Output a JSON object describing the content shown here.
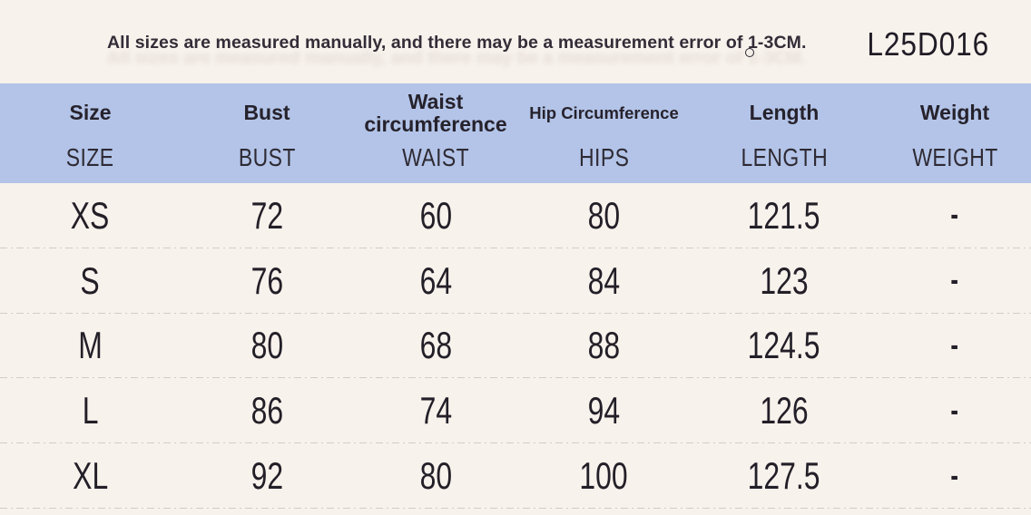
{
  "note": {
    "text": "All sizes are measured manually, and there may be a measurement error of 1-3CM.",
    "circle_mark": ""
  },
  "product_code": "L25D016",
  "colors": {
    "page_bg": "#f8f2ec",
    "header_bg": "#b3c4e8",
    "text_dark": "#2b2630",
    "divider": "#d2ccc7"
  },
  "table": {
    "columns": [
      {
        "label": "Size",
        "sublabel": "SIZE"
      },
      {
        "label": "Bust",
        "sublabel": "BUST"
      },
      {
        "label": "Waist circumference",
        "sublabel": "WAIST"
      },
      {
        "label": "Hip Circumference",
        "sublabel": "HIPS"
      },
      {
        "label": "Length",
        "sublabel": "LENGTH"
      },
      {
        "label": "Weight",
        "sublabel": "WEIGHT"
      }
    ],
    "rows": [
      {
        "size": "XS",
        "bust": "72",
        "waist": "60",
        "hips": "80",
        "length": "121.5",
        "weight": "-"
      },
      {
        "size": "S",
        "bust": "76",
        "waist": "64",
        "hips": "84",
        "length": "123",
        "weight": "-"
      },
      {
        "size": "M",
        "bust": "80",
        "waist": "68",
        "hips": "88",
        "length": "124.5",
        "weight": "-"
      },
      {
        "size": "L",
        "bust": "86",
        "waist": "74",
        "hips": "94",
        "length": "126",
        "weight": "-"
      },
      {
        "size": "XL",
        "bust": "92",
        "waist": "80",
        "hips": "100",
        "length": "127.5",
        "weight": "-"
      }
    ]
  },
  "chart_data": {
    "type": "table",
    "title": "Garment size chart L25D016",
    "note": "All sizes are measured manually, and there may be a measurement error of 1-3CM.",
    "columns": [
      "Size / SIZE",
      "Bust / BUST",
      "Waist circumference / WAIST",
      "Hip Circumference / HIPS",
      "Length / LENGTH",
      "Weight / WEIGHT"
    ],
    "rows": [
      [
        "XS",
        72,
        60,
        80,
        121.5,
        null
      ],
      [
        "S",
        76,
        64,
        84,
        123,
        null
      ],
      [
        "M",
        80,
        68,
        88,
        124.5,
        null
      ],
      [
        "L",
        86,
        74,
        94,
        126,
        null
      ],
      [
        "XL",
        92,
        80,
        100,
        127.5,
        null
      ]
    ],
    "units": "CM",
    "missing_value_marker": "-"
  }
}
